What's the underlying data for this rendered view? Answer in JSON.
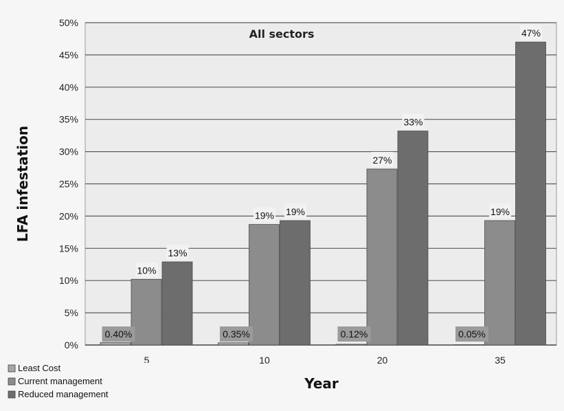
{
  "chart_data": {
    "type": "bar",
    "title": "All sectors",
    "xlabel": "Year",
    "ylabel": "LFA infestation",
    "categories": [
      "5",
      "10",
      "20",
      "35"
    ],
    "ylim": [
      0,
      50
    ],
    "yticks": [
      "0%",
      "5%",
      "10%",
      "15%",
      "20%",
      "25%",
      "30%",
      "35%",
      "40%",
      "45%",
      "50%"
    ],
    "grid": true,
    "legend_position": "bottom-left",
    "series": [
      {
        "name": "Least Cost",
        "values": [
          0.4,
          0.35,
          0.12,
          0.05
        ],
        "labels": [
          "0.40%",
          "0.35%",
          "0.12%",
          "0.05%"
        ],
        "color": "#a6a6a6"
      },
      {
        "name": "Current management",
        "values": [
          10.2,
          18.7,
          27.3,
          19.3
        ],
        "labels": [
          "10%",
          "19%",
          "27%",
          "19%"
        ],
        "color": "#8c8c8c"
      },
      {
        "name": "Reduced management",
        "values": [
          12.9,
          19.3,
          33.2,
          47.0
        ],
        "labels": [
          "13%",
          "19%",
          "33%",
          "47%"
        ],
        "color": "#6d6d6d"
      }
    ]
  }
}
